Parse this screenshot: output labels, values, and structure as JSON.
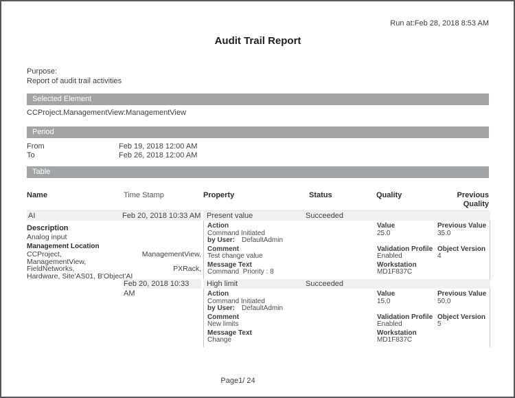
{
  "page": {
    "run_at": "Run at:Feb 28, 2018 8:53 AM",
    "title": "Audit Trail Report",
    "purpose_label": "Purpose:",
    "purpose_text": "Report of audit trail activities",
    "footer_page": "Page1/ 24"
  },
  "selected_element": {
    "header": "Selected Element",
    "value": "CCProject.ManagementView:ManagementView"
  },
  "period": {
    "header": "Period",
    "from_label": "From",
    "from_value": "Feb 19, 2018 12:00 AM",
    "to_label": "To",
    "to_value": "Feb 26, 2018 12:00 AM"
  },
  "table": {
    "header": "Table",
    "columns": [
      "Name",
      "Time Stamp",
      "Property",
      "Status",
      "Quality",
      "Previous Quality"
    ],
    "row": {
      "name": "AI",
      "time_stamp": "Feb 20, 2018 10:33 AM",
      "description_label": "Description",
      "description": "Analog input",
      "management_location_label": "Management Location",
      "management_location_lines": [
        "CCProject, ManagementView,",
        "ManagementView,",
        "FieldNetworks, PXRack,",
        "Hardware, Site'AS01, B'Object'AI"
      ],
      "entries": [
        {
          "time_stamp": "Feb 20, 2018 10:33 AM",
          "property": "Present value",
          "status": "Succeeded",
          "action_label": "Action",
          "action": "Command Initiated",
          "by_user_label": "by User:",
          "by_user": "DefaultAdmin",
          "comment_label": "Comment",
          "comment": "Test change value",
          "message_label": "Message Text",
          "message": "Command  Priority : 8",
          "value_label": "Value",
          "value": "25.0",
          "prev_value_label": "Previous Value",
          "prev_value": "35.0",
          "validation_label": "Validation Profile",
          "validation": "Enabled",
          "object_version_label": "Object Version",
          "object_version": "4",
          "workstation_label": "Workstation",
          "workstation": "MD1F837C"
        },
        {
          "time_stamp": "Feb 20, 2018 10:33 AM",
          "property": "High limit",
          "status": "Succeeded",
          "action_label": "Action",
          "action": "Command Initiated",
          "by_user_label": "by User:",
          "by_user": "DefaultAdmin",
          "comment_label": "Comment",
          "comment": "New limits",
          "message_label": "Message Text",
          "message": "Change",
          "value_label": "Value",
          "value": "15.0",
          "prev_value_label": "Previous Value",
          "prev_value": "50.0",
          "validation_label": "Validation Profile",
          "validation": "Enabled",
          "object_version_label": "Object Version",
          "object_version": "5",
          "workstation_label": "Workstation",
          "workstation": "MD1F837C"
        }
      ]
    }
  },
  "colors": {
    "section_bar": "#a2a5a7",
    "row_band": "#f0f0f0",
    "page_border": "#56575b",
    "detail_border": "#c3c3c3"
  }
}
